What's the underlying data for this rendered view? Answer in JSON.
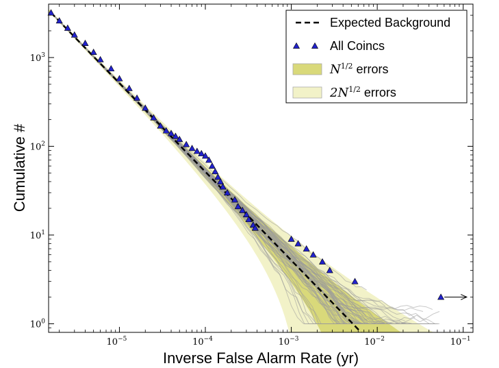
{
  "chart_data": {
    "type": "scatter",
    "xlabel": "Inverse False Alarm Rate (yr)",
    "ylabel": "Cumulative #",
    "xscale": "log",
    "yscale": "log",
    "xlim": [
      1.5e-06,
      0.13
    ],
    "ylim": [
      0.8,
      4000
    ],
    "x_ticks": [
      {
        "value": 1e-05,
        "base": "10",
        "exp": "−5"
      },
      {
        "value": 0.0001,
        "base": "10",
        "exp": "−4"
      },
      {
        "value": 0.001,
        "base": "10",
        "exp": "−3"
      },
      {
        "value": 0.01,
        "base": "10",
        "exp": "−2"
      },
      {
        "value": 0.1,
        "base": "10",
        "exp": "−1"
      }
    ],
    "y_ticks": [
      {
        "value": 1,
        "base": "10",
        "exp": "0"
      },
      {
        "value": 10,
        "base": "10",
        "exp": "1"
      },
      {
        "value": 100,
        "base": "10",
        "exp": "2"
      },
      {
        "value": 1000,
        "base": "10",
        "exp": "3"
      }
    ],
    "grid": false,
    "legend_position": "top-right",
    "colors": {
      "expected": "#000000",
      "coincs": "#2222cc",
      "band1": "#d9d97a",
      "band2": "#f2f2c8",
      "trials": "#9a9a9a"
    },
    "legend": [
      {
        "key": "expected",
        "label": "Expected Background"
      },
      {
        "key": "coincs",
        "label": "All Coincs"
      },
      {
        "key": "band1",
        "math_prefix": "",
        "math_base": "N",
        "math_exp": "1/2",
        "label": " errors"
      },
      {
        "key": "band2",
        "math_prefix": "2",
        "math_base": "N",
        "math_exp": "1/2",
        "label": " errors"
      }
    ],
    "expected_background": {
      "x": [
        1.6e-06,
        0.0065
      ],
      "y": [
        3200,
        0.8
      ]
    },
    "all_coincs": {
      "x": [
        1.6e-06,
        2e-06,
        2.5e-06,
        3e-06,
        4e-06,
        5e-06,
        6e-06,
        8e-06,
        1e-05,
        1.3e-05,
        1.6e-05,
        2e-05,
        2.5e-05,
        3e-05,
        3.5e-05,
        4e-05,
        4.5e-05,
        5e-05,
        6e-05,
        7e-05,
        8e-05,
        9e-05,
        0.0001,
        0.00011,
        0.00012,
        0.00013,
        0.00014,
        0.00015,
        0.00016,
        0.00018,
        0.00022,
        0.00024,
        0.00027,
        0.0003,
        0.00032,
        0.00036,
        0.00038,
        0.001,
        0.0012,
        0.0015,
        0.0018,
        0.0023,
        0.0028,
        0.0055,
        0.055
      ],
      "y": [
        3200,
        2600,
        2150,
        1800,
        1450,
        1150,
        950,
        750,
        580,
        450,
        350,
        270,
        210,
        170,
        150,
        140,
        130,
        120,
        105,
        95,
        88,
        83,
        78,
        70,
        60,
        52,
        45,
        40,
        35,
        30,
        25,
        21,
        19,
        17,
        15,
        13,
        12,
        9,
        8,
        7,
        6,
        5,
        4,
        3,
        2
      ]
    },
    "fap_arrow": {
      "x_from": 0.055,
      "x_to": 0.11,
      "y": 2
    },
    "trials": 60
  }
}
